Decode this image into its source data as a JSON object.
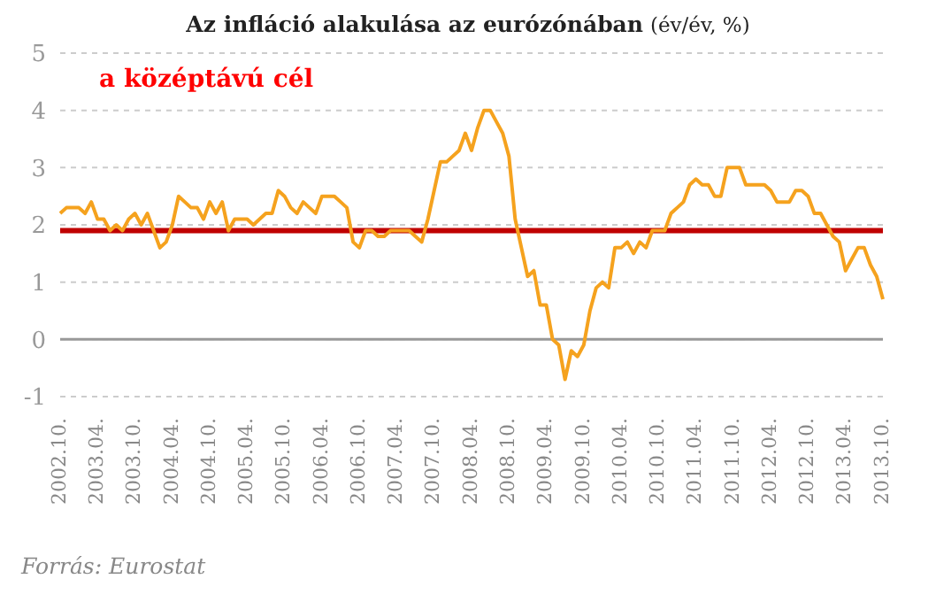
{
  "chart_data": {
    "type": "line",
    "title": "Az infláció alakulása az eurózónában",
    "subtitle": "(év/év, %)",
    "categories": [
      "2002.10.",
      null,
      null,
      null,
      null,
      null,
      "2003.04.",
      null,
      null,
      null,
      null,
      null,
      "2003.10.",
      null,
      null,
      null,
      null,
      null,
      "2004.04.",
      null,
      null,
      null,
      null,
      null,
      "2004.10.",
      null,
      null,
      null,
      null,
      null,
      "2005.04.",
      null,
      null,
      null,
      null,
      null,
      "2005.10.",
      null,
      null,
      null,
      null,
      null,
      "2006.04.",
      null,
      null,
      null,
      null,
      null,
      "2006.10.",
      null,
      null,
      null,
      null,
      null,
      "2007.04.",
      null,
      null,
      null,
      null,
      null,
      "2007.10.",
      null,
      null,
      null,
      null,
      null,
      "2008.04.",
      null,
      null,
      null,
      null,
      null,
      "2008.10.",
      null,
      null,
      null,
      null,
      null,
      "2009.04.",
      null,
      null,
      null,
      null,
      null,
      "2009.10.",
      null,
      null,
      null,
      null,
      null,
      "2010.04.",
      null,
      null,
      null,
      null,
      null,
      "2010.10.",
      null,
      null,
      null,
      null,
      null,
      "2011.04.",
      null,
      null,
      null,
      null,
      null,
      "2011.10.",
      null,
      null,
      null,
      null,
      null,
      "2012.04.",
      null,
      null,
      null,
      null,
      null,
      "2012.10.",
      null,
      null,
      null,
      null,
      null,
      "2013.04.",
      null,
      null,
      null,
      null,
      null,
      "2013.10."
    ],
    "series": [
      {
        "color": "#f5a21e",
        "values": [
          2.2,
          2.3,
          2.3,
          2.3,
          2.2,
          2.4,
          2.1,
          2.1,
          1.9,
          2.0,
          1.9,
          2.1,
          2.2,
          2.0,
          2.2,
          1.9,
          1.6,
          1.7,
          2.0,
          2.5,
          2.4,
          2.3,
          2.3,
          2.1,
          2.4,
          2.2,
          2.4,
          1.9,
          2.1,
          2.1,
          2.1,
          2.0,
          2.1,
          2.2,
          2.2,
          2.6,
          2.5,
          2.3,
          2.2,
          2.4,
          2.3,
          2.2,
          2.5,
          2.5,
          2.5,
          2.4,
          2.3,
          1.7,
          1.6,
          1.9,
          1.9,
          1.8,
          1.8,
          1.9,
          1.9,
          1.9,
          1.9,
          1.8,
          1.7,
          2.1,
          2.6,
          3.1,
          3.1,
          3.2,
          3.3,
          3.6,
          3.3,
          3.7,
          4.0,
          4.0,
          3.8,
          3.6,
          3.2,
          2.1,
          1.6,
          1.1,
          1.2,
          0.6,
          0.6,
          0.0,
          -0.1,
          -0.7,
          -0.2,
          -0.3,
          -0.1,
          0.5,
          0.9,
          1.0,
          0.9,
          1.6,
          1.6,
          1.7,
          1.5,
          1.7,
          1.6,
          1.9,
          1.9,
          1.9,
          2.2,
          2.3,
          2.4,
          2.7,
          2.8,
          2.7,
          2.7,
          2.5,
          2.5,
          3.0,
          3.0,
          3.0,
          2.7,
          2.7,
          2.7,
          2.7,
          2.6,
          2.4,
          2.4,
          2.4,
          2.6,
          2.6,
          2.5,
          2.2,
          2.2,
          2.0,
          1.8,
          1.7,
          1.2,
          1.4,
          1.6,
          1.6,
          1.3,
          1.1,
          0.7
        ]
      }
    ],
    "ylim": [
      -1,
      5
    ],
    "yticks": [
      -1,
      0,
      1,
      2,
      3,
      4,
      5
    ],
    "grid": "y",
    "marker": "none",
    "line_style": "solid",
    "ref_lines": [
      {
        "axis": "y",
        "value": 0,
        "color": "#999999"
      },
      {
        "axis": "y",
        "value": 1.9,
        "color": "#c00000"
      }
    ],
    "annotations": [
      "a középtávú cél",
      "Forrás: Eurostat"
    ]
  }
}
